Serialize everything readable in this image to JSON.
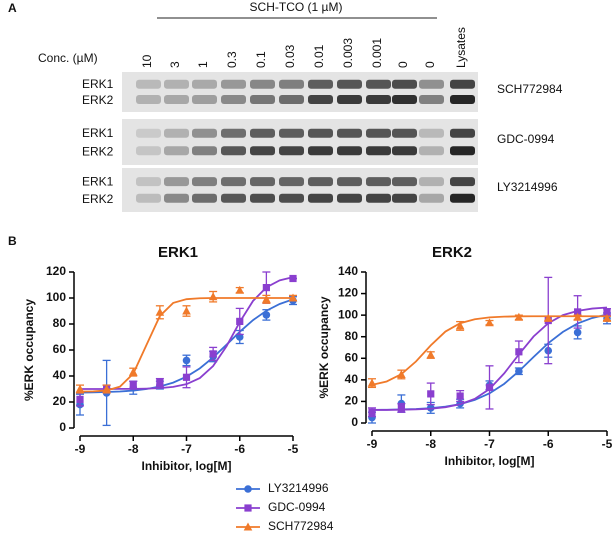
{
  "panel_a": {
    "label": "A",
    "treatment": "SCH-TCO (1 µM)",
    "conc_label": "Conc. (µM)",
    "lanes": [
      "10",
      "3",
      "1",
      "0.3",
      "0.1",
      "0.03",
      "0.01",
      "0.003",
      "0.001",
      "0",
      "0",
      "Lysates"
    ],
    "band_labels": [
      "ERK1",
      "ERK2"
    ],
    "blots": [
      "SCH772984",
      "GDC-0994",
      "LY3214996"
    ]
  },
  "panel_b": {
    "label": "B"
  },
  "chart_data": [
    {
      "type": "line",
      "title": "ERK1",
      "x_label": "Inhibitor, log[M]",
      "y_label": "%ERK occupancy",
      "x": [
        -9,
        -8.5,
        -8,
        -7.5,
        -7,
        -6.5,
        -6,
        -5.5,
        -5
      ],
      "fit_x": [
        -9,
        -8.75,
        -8.5,
        -8.25,
        -8,
        -7.75,
        -7.5,
        -7.25,
        -7,
        -6.75,
        -6.5,
        -6.25,
        -6,
        -5.75,
        -5.5,
        -5.25,
        -5
      ],
      "xlim": [
        -9,
        -5
      ],
      "xticks": [
        -9,
        -8,
        -7,
        -6,
        -5
      ],
      "ylim": [
        0,
        120
      ],
      "yticks": [
        0,
        20,
        40,
        60,
        80,
        100,
        120
      ],
      "series": [
        {
          "name": "LY3214996",
          "color": "#3b6fd6",
          "marker": "circle",
          "values": [
            18,
            27,
            31,
            33,
            52,
            55,
            70,
            87,
            98
          ],
          "errors": [
            8,
            25,
            5,
            3,
            4,
            4,
            5,
            4,
            3
          ],
          "fit": [
            27.2,
            27.4,
            27.7,
            28.1,
            28.8,
            30.0,
            31.9,
            34.9,
            39.5,
            45.9,
            54.3,
            64.0,
            74.0,
            83.0,
            90.2,
            95.4,
            99.0
          ]
        },
        {
          "name": "GDC-0994",
          "color": "#8a3fcf",
          "marker": "square",
          "values": [
            22,
            30,
            33,
            35,
            39,
            57,
            82,
            108,
            115
          ],
          "errors": [
            5,
            3,
            3,
            3,
            8,
            5,
            10,
            12,
            0
          ],
          "fit": [
            30.0,
            30.0,
            30.0,
            30.1,
            30.1,
            30.3,
            30.7,
            31.6,
            33.7,
            38.4,
            47.7,
            62.8,
            81.5,
            97.8,
            108.2,
            113.6,
            116.1
          ]
        },
        {
          "name": "SCH772984",
          "color": "#f07a2a",
          "marker": "triangle",
          "values": [
            30,
            30,
            43,
            89,
            90,
            101,
            106,
            99,
            100
          ],
          "errors": [
            3,
            3,
            3,
            5,
            4,
            4,
            2,
            3,
            2
          ],
          "fit": [
            28.1,
            28.2,
            28.9,
            31.8,
            41.8,
            64.0,
            86.2,
            96.2,
            99.1,
            99.8,
            100,
            100,
            100,
            100,
            100,
            100,
            100
          ]
        }
      ]
    },
    {
      "type": "line",
      "title": "ERK2",
      "x_label": "Inhibitor, log[M]",
      "y_label": "%ERK occupancy",
      "x": [
        -9,
        -8.5,
        -8,
        -7.5,
        -7,
        -6.5,
        -6,
        -5.5,
        -5
      ],
      "fit_x": [
        -9,
        -8.75,
        -8.5,
        -8.25,
        -8,
        -7.75,
        -7.5,
        -7.25,
        -7,
        -6.75,
        -6.5,
        -6.25,
        -6,
        -5.75,
        -5.5,
        -5.25,
        -5
      ],
      "xlim": [
        -9,
        -5
      ],
      "xticks": [
        -9,
        -8,
        -7,
        -6,
        -5
      ],
      "ylim": [
        0,
        140
      ],
      "yticks": [
        0,
        20,
        40,
        60,
        80,
        100,
        120,
        140
      ],
      "series": [
        {
          "name": "LY3214996",
          "color": "#3b6fd6",
          "marker": "circle",
          "values": [
            5,
            18,
            14,
            18,
            35,
            48,
            67,
            84,
            97
          ],
          "errors": [
            5,
            8,
            5,
            4,
            4,
            3,
            6,
            6,
            5
          ],
          "fit": [
            12.2,
            12.3,
            12.6,
            13.0,
            13.8,
            15.2,
            17.5,
            21.4,
            27.5,
            36.3,
            48.0,
            61.2,
            74.0,
            84.5,
            92.3,
            97.4,
            100.6
          ]
        },
        {
          "name": "GDC-0994",
          "color": "#8a3fcf",
          "marker": "square",
          "values": [
            10,
            14,
            27,
            25,
            33,
            66,
            95,
            103,
            103
          ],
          "errors": [
            4,
            4,
            10,
            5,
            20,
            10,
            40,
            15,
            3
          ],
          "fit": [
            12.1,
            12.1,
            12.3,
            12.6,
            13.2,
            14.6,
            17.4,
            22.4,
            31.5,
            46.0,
            63.6,
            80.2,
            92.5,
            100.0,
            104.0,
            106.1,
            107.1
          ]
        },
        {
          "name": "SCH772984",
          "color": "#f07a2a",
          "marker": "triangle",
          "values": [
            37,
            45,
            63,
            90,
            93,
            98,
            97,
            98,
            97
          ],
          "errors": [
            4,
            4,
            3,
            4,
            2,
            2,
            2,
            2,
            2
          ],
          "fit": [
            35.3,
            38.5,
            45.3,
            57.1,
            72.0,
            84.8,
            92.5,
            96.2,
            97.9,
            98.6,
            98.9,
            99,
            99,
            99,
            99,
            99,
            99
          ]
        }
      ]
    }
  ]
}
